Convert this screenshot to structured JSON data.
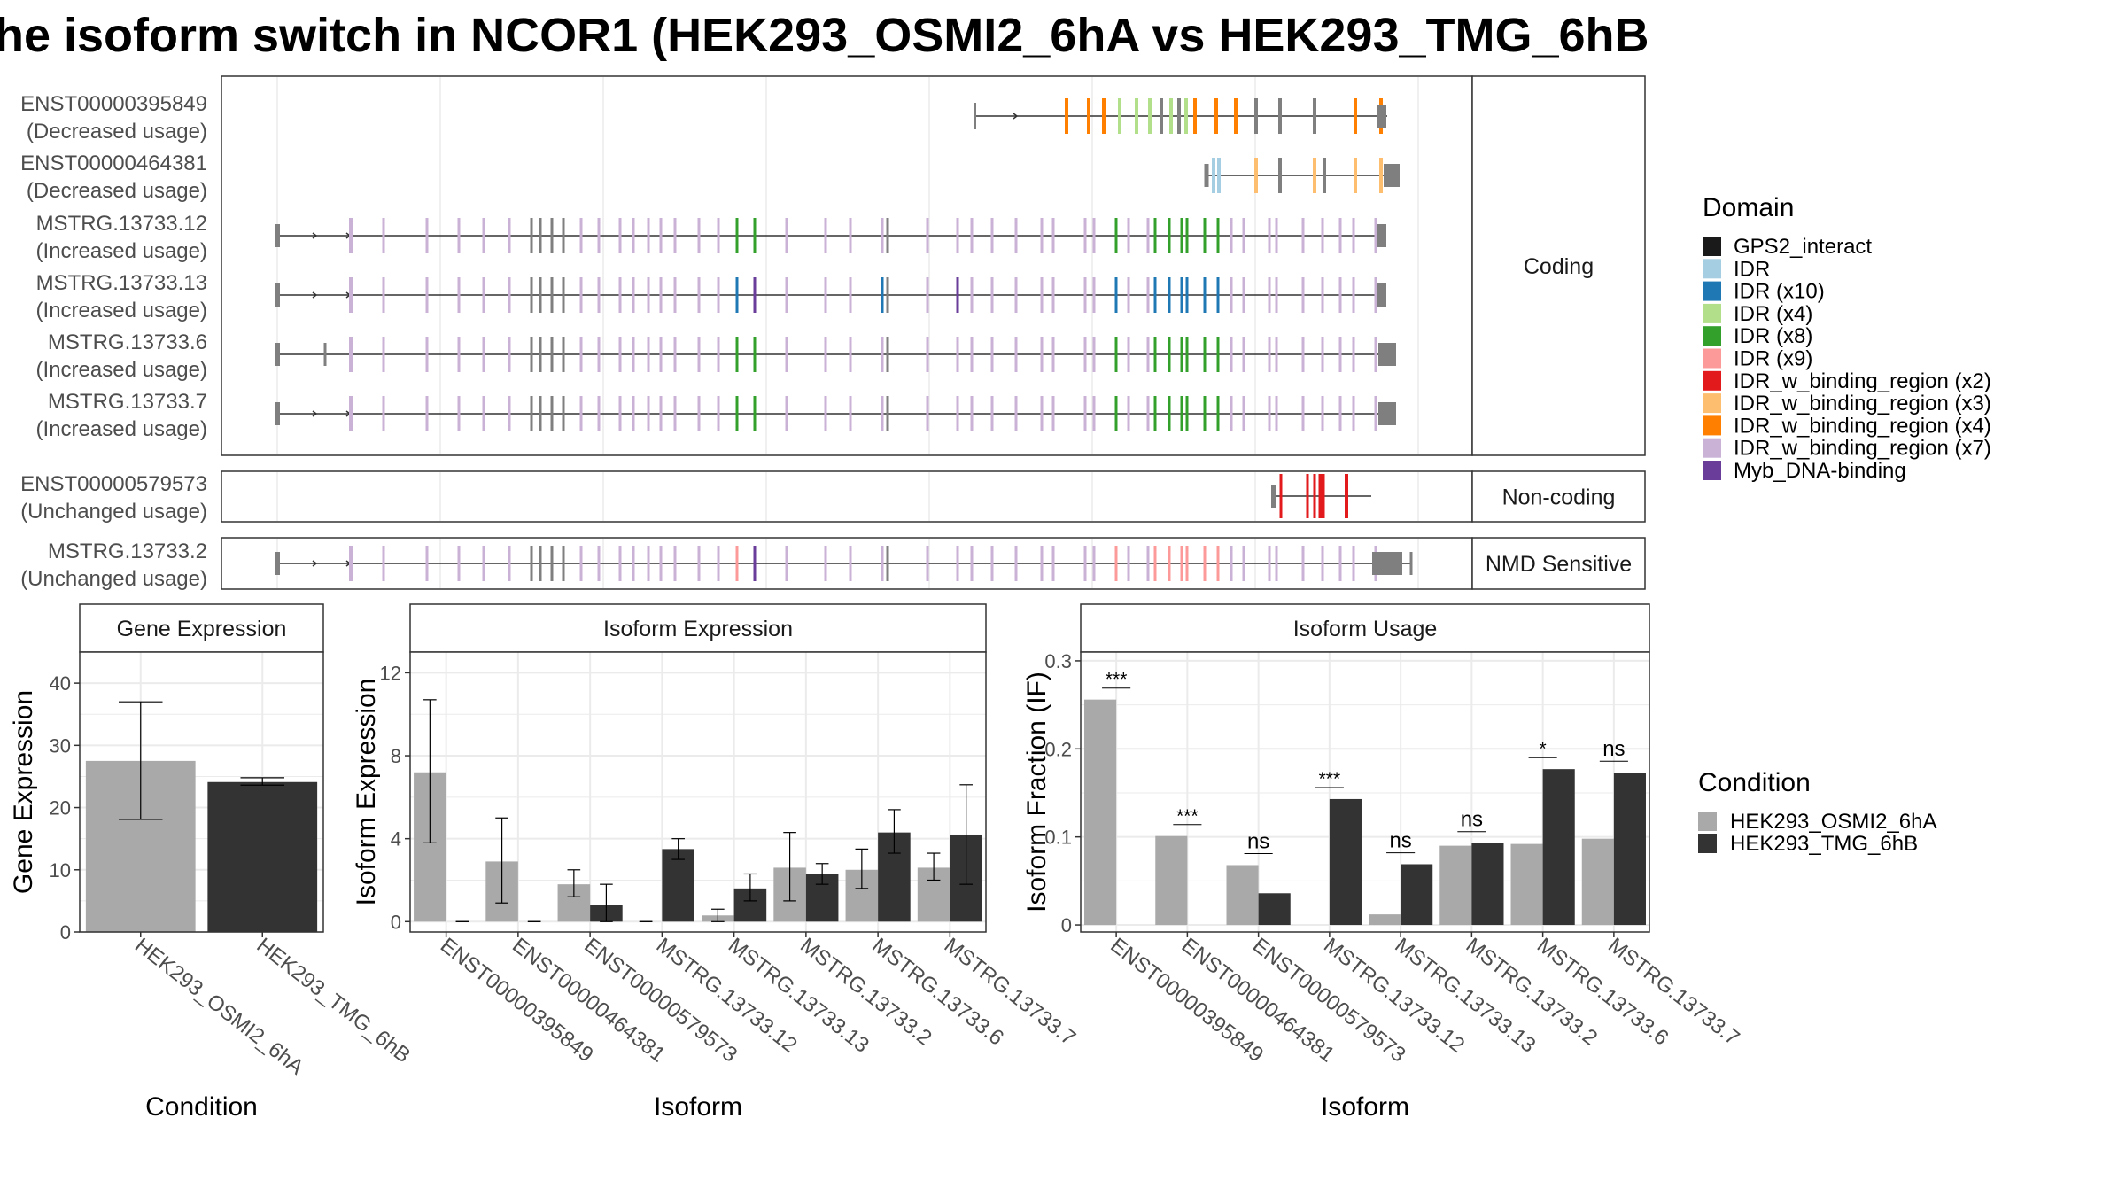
{
  "title": "he isoform switch in NCOR1 (HEK293_OSMI2_6hA vs HEK293_TMG_6hB",
  "colors": {
    "panel_border": "#333333",
    "grid": "#ebebeb",
    "strip_fill": "#ffffff",
    "backbone": "#333333",
    "default_exon": "#7f7f7f",
    "cond_a": "#a9a9a9",
    "cond_b": "#333333"
  },
  "structure": {
    "facets": [
      {
        "label": "Coding",
        "rows": [
          {
            "id": "ENST00000395849",
            "status": "(Decreased usage)"
          },
          {
            "id": "ENST00000464381",
            "status": "(Decreased usage)"
          },
          {
            "id": "MSTRG.13733.12",
            "status": "(Increased usage)"
          },
          {
            "id": "MSTRG.13733.13",
            "status": "(Increased usage)"
          },
          {
            "id": "MSTRG.13733.6",
            "status": "(Increased usage)"
          },
          {
            "id": "MSTRG.13733.7",
            "status": "(Increased usage)"
          }
        ]
      },
      {
        "label": "Non-coding",
        "rows": [
          {
            "id": "ENST00000579573",
            "status": "(Unchanged usage)"
          }
        ]
      },
      {
        "label": "NMD Sensitive",
        "rows": [
          {
            "id": "MSTRG.13733.2",
            "status": "(Unchanged usage)"
          }
        ]
      }
    ]
  },
  "domain_legend": {
    "title": "Domain",
    "items": [
      {
        "label": "GPS2_interact",
        "color": "#1a1a1a"
      },
      {
        "label": "IDR",
        "color": "#a6cee3"
      },
      {
        "label": "IDR (x10)",
        "color": "#1f78b4"
      },
      {
        "label": "IDR (x4)",
        "color": "#b2df8a"
      },
      {
        "label": "IDR (x8)",
        "color": "#33a02c"
      },
      {
        "label": "IDR (x9)",
        "color": "#fb9a99"
      },
      {
        "label": "IDR_w_binding_region (x2)",
        "color": "#e31a1c"
      },
      {
        "label": "IDR_w_binding_region (x3)",
        "color": "#fdbf6f"
      },
      {
        "label": "IDR_w_binding_region (x4)",
        "color": "#ff7f00"
      },
      {
        "label": "IDR_w_binding_region (x7)",
        "color": "#cab2d6"
      },
      {
        "label": "Myb_DNA-binding",
        "color": "#6a3d9a"
      }
    ]
  },
  "condition_legend": {
    "title": "Condition",
    "items": [
      {
        "label": "HEK293_OSMI2_6hA",
        "color": "#a9a9a9"
      },
      {
        "label": "HEK293_TMG_6hB",
        "color": "#333333"
      }
    ]
  },
  "chart_data": [
    {
      "type": "bar",
      "strip": "Gene Expression",
      "xlabel": "Condition",
      "ylabel": "Gene Expression",
      "categories": [
        "HEK293_OSMI2_6hA",
        "HEK293_TMG_6hB"
      ],
      "values": [
        27.5,
        24.1
      ],
      "errors": [
        [
          18.1,
          37.0
        ],
        [
          23.6,
          24.8
        ]
      ],
      "ylim": [
        0,
        45
      ],
      "yticks": [
        0,
        10,
        20,
        30,
        40
      ],
      "grid": true
    },
    {
      "type": "bar",
      "strip": "Isoform Expression",
      "xlabel": "Isoform",
      "ylabel": "Isoform Expression",
      "categories": [
        "ENST00000395849",
        "ENST00000464381",
        "ENST00000579573",
        "MSTRG.13733.12",
        "MSTRG.13733.13",
        "MSTRG.13733.2",
        "MSTRG.13733.6",
        "MSTRG.13733.7"
      ],
      "series": [
        {
          "name": "HEK293_OSMI2_6hA",
          "values": [
            7.2,
            2.9,
            1.8,
            0.0,
            0.3,
            2.6,
            2.5,
            2.6
          ],
          "errors": [
            [
              3.8,
              10.7
            ],
            [
              0.9,
              5.0
            ],
            [
              1.2,
              2.5
            ],
            [
              0.0,
              0.0
            ],
            [
              0.0,
              0.6
            ],
            [
              1.0,
              4.3
            ],
            [
              1.6,
              3.5
            ],
            [
              2.0,
              3.3
            ]
          ]
        },
        {
          "name": "HEK293_TMG_6hB",
          "values": [
            0.0,
            0.0,
            0.8,
            3.5,
            1.6,
            2.3,
            4.3,
            4.2
          ],
          "errors": [
            [
              0.0,
              0.0
            ],
            [
              0.0,
              0.0
            ],
            [
              0.0,
              1.8
            ],
            [
              3.0,
              4.0
            ],
            [
              1.0,
              2.3
            ],
            [
              1.8,
              2.8
            ],
            [
              3.3,
              5.4
            ],
            [
              1.8,
              6.6
            ]
          ]
        }
      ],
      "ylim": [
        -0.5,
        13
      ],
      "yticks": [
        0,
        4,
        8,
        12
      ],
      "grid": true
    },
    {
      "type": "bar",
      "strip": "Isoform Usage",
      "xlabel": "Isoform",
      "ylabel": "Isoform Fraction (IF)",
      "categories": [
        "ENST00000395849",
        "ENST00000464381",
        "ENST00000579573",
        "MSTRG.13733.12",
        "MSTRG.13733.13",
        "MSTRG.13733.2",
        "MSTRG.13733.6",
        "MSTRG.13733.7"
      ],
      "series": [
        {
          "name": "HEK293_OSMI2_6hA",
          "values": [
            0.256,
            0.101,
            0.068,
            0.0,
            0.012,
            0.09,
            0.092,
            0.098
          ]
        },
        {
          "name": "HEK293_TMG_6hB",
          "values": [
            0.0,
            0.0,
            0.036,
            0.143,
            0.069,
            0.093,
            0.177,
            0.173
          ]
        }
      ],
      "significance": [
        "***",
        "***",
        "ns",
        "***",
        "ns",
        "ns",
        "*",
        "ns"
      ],
      "ylim": [
        -0.008,
        0.31
      ],
      "yticks": [
        0.0,
        0.1,
        0.2,
        0.3
      ],
      "grid": true
    }
  ]
}
